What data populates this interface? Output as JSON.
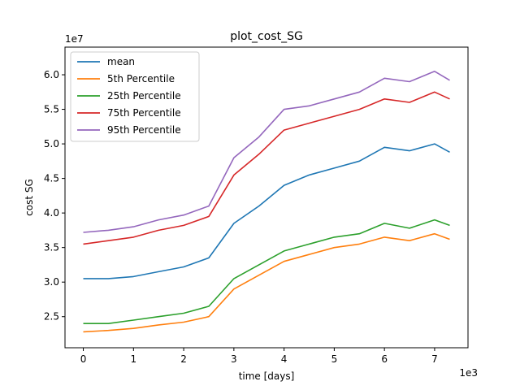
{
  "chart_data": {
    "type": "line",
    "title": "plot_cost_SG",
    "xlabel": "time [days]",
    "ylabel": "cost SG",
    "x_multiplier_label": "1e3",
    "y_multiplier_label": "1e7",
    "xlim": [
      -0.365,
      7.665
    ],
    "ylim": [
      2.05,
      6.4
    ],
    "xticks": [
      0,
      1,
      2,
      3,
      4,
      5,
      6,
      7
    ],
    "xtick_labels": [
      "0",
      "1",
      "2",
      "3",
      "4",
      "5",
      "6",
      "7"
    ],
    "yticks": [
      2.5,
      3.0,
      3.5,
      4.0,
      4.5,
      5.0,
      5.5,
      6.0
    ],
    "ytick_labels": [
      "2.5",
      "3.0",
      "3.5",
      "4.0",
      "4.5",
      "5.0",
      "5.5",
      "6.0"
    ],
    "grid": false,
    "legend_position": "top-left",
    "x": [
      0,
      0.5,
      1.0,
      1.5,
      2.0,
      2.5,
      3.0,
      3.5,
      4.0,
      4.5,
      5.0,
      5.5,
      6.0,
      6.5,
      7.0,
      7.3
    ],
    "series": [
      {
        "name": "mean",
        "color": "#1f77b4",
        "values": [
          3.05,
          3.05,
          3.08,
          3.15,
          3.22,
          3.35,
          3.85,
          4.1,
          4.4,
          4.55,
          4.65,
          4.75,
          4.95,
          4.9,
          5.0,
          4.88
        ]
      },
      {
        "name": "5th Percentile",
        "color": "#ff7f0e",
        "values": [
          2.28,
          2.3,
          2.33,
          2.38,
          2.42,
          2.5,
          2.9,
          3.1,
          3.3,
          3.4,
          3.5,
          3.55,
          3.65,
          3.6,
          3.7,
          3.62
        ]
      },
      {
        "name": "25th Percentile",
        "color": "#2ca02c",
        "values": [
          2.4,
          2.4,
          2.45,
          2.5,
          2.55,
          2.65,
          3.05,
          3.25,
          3.45,
          3.55,
          3.65,
          3.7,
          3.85,
          3.78,
          3.9,
          3.82
        ]
      },
      {
        "name": "75th Percentile",
        "color": "#d62728",
        "values": [
          3.55,
          3.6,
          3.65,
          3.75,
          3.82,
          3.95,
          4.55,
          4.85,
          5.2,
          5.3,
          5.4,
          5.5,
          5.65,
          5.6,
          5.75,
          5.65
        ]
      },
      {
        "name": "95th Percentile",
        "color": "#9467bd",
        "values": [
          3.72,
          3.75,
          3.8,
          3.9,
          3.97,
          4.1,
          4.8,
          5.1,
          5.5,
          5.55,
          5.65,
          5.75,
          5.95,
          5.9,
          6.05,
          5.92
        ]
      }
    ]
  }
}
